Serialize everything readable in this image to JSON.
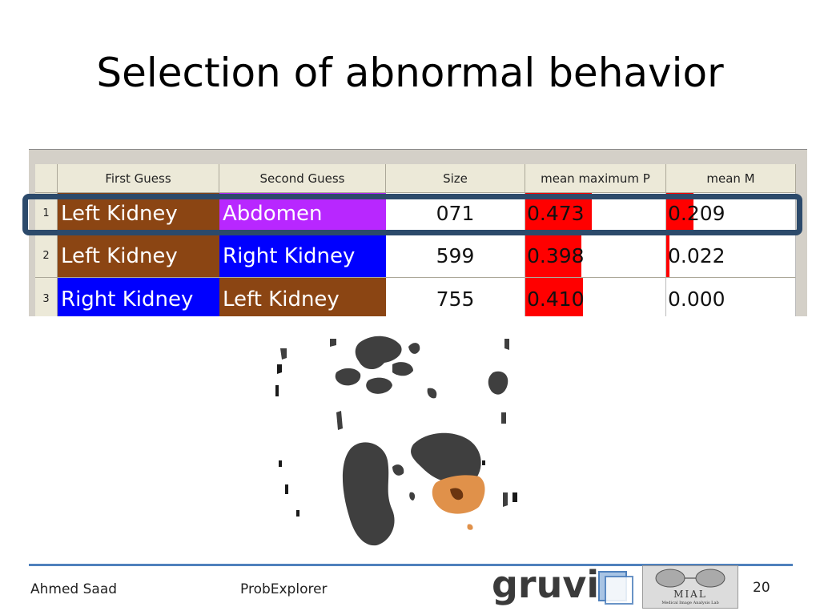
{
  "slide": {
    "title": "Selection of abnormal behavior"
  },
  "table": {
    "columns": [
      "First Guess",
      "Second Guess",
      "Size",
      "mean maximum P",
      "mean M"
    ],
    "rows": [
      {
        "index": "1",
        "first_guess": "Left Kidney",
        "first_color": "#8b4513",
        "second_guess": "Abdomen",
        "second_color": "#b827ff",
        "size": "071",
        "mean_max_p": "0.473",
        "mean_max_p_fill": 0.473,
        "mean_m": "0.209",
        "mean_m_fill": 0.209
      },
      {
        "index": "2",
        "first_guess": "Left Kidney",
        "first_color": "#8b4513",
        "second_guess": "Right Kidney",
        "second_color": "#0000ff",
        "size": "599",
        "mean_max_p": "0.398",
        "mean_max_p_fill": 0.398,
        "mean_m": "0.022",
        "mean_m_fill": 0.022
      },
      {
        "index": "3",
        "first_guess": "Right Kidney",
        "first_color": "#0000ff",
        "second_guess": "Left Kidney",
        "second_color": "#8b4513",
        "size": "755",
        "mean_max_p": "0.410",
        "mean_max_p_fill": 0.41,
        "mean_m": "0.000",
        "mean_m_fill": 0.0
      }
    ],
    "selected_row": 1,
    "bar_color": "#ff0000",
    "selection_color": "#2c4a6b"
  },
  "footer": {
    "author": "Ahmed Saad",
    "project": "ProbExplorer",
    "logo_text": "gruvi",
    "lab_logo_title": "MIAL",
    "lab_logo_subtitle": "Medical Image Analysis Lab",
    "page_number": "20",
    "line_color": "#4f81bd"
  }
}
